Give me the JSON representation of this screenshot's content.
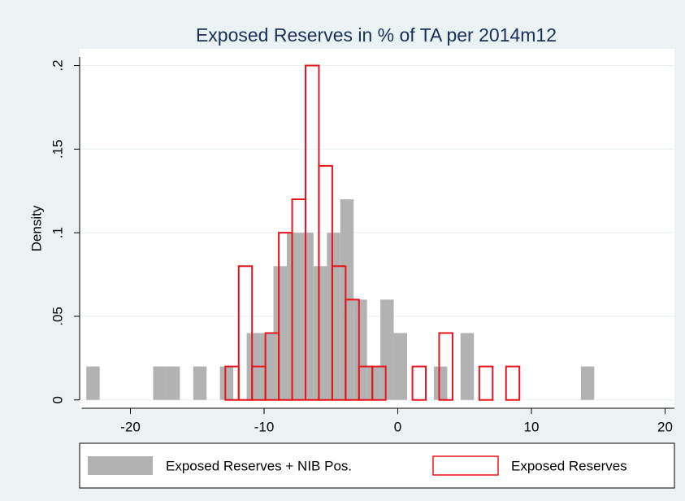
{
  "chart_data": {
    "type": "histogram",
    "title": "Exposed Reserves in % of TA per 2014m12",
    "y_label": "Density",
    "xlim": [
      -23.8,
      20.7
    ],
    "ylim": [
      -0.005,
      0.21
    ],
    "xticks": [
      -20,
      -10,
      0,
      10,
      20
    ],
    "yticks": [
      {
        "value": 0,
        "label": "0"
      },
      {
        "value": 0.05,
        "label": ".05"
      },
      {
        "value": 0.1,
        "label": ".1"
      },
      {
        "value": 0.15,
        "label": ".15"
      },
      {
        "value": 0.2,
        "label": ".2"
      }
    ],
    "grid": true,
    "series": [
      {
        "name": "Exposed Reserves + NIB Pos.",
        "color": "#b2b2b2",
        "fill": true,
        "bins": [
          -23.3,
          -22.3,
          -21.3,
          -20.3,
          -19.3,
          -18.3,
          -17.3,
          -16.3,
          -15.3,
          -14.3,
          -13.3,
          -12.3,
          -11.3,
          -10.3,
          -9.3,
          -8.3,
          -7.3,
          -6.3,
          -5.3,
          -4.3,
          -3.3,
          -2.3,
          -1.3,
          -0.3,
          0.7,
          1.7,
          2.7,
          3.7,
          4.7,
          5.7,
          6.7,
          7.7,
          8.7,
          9.7,
          10.7,
          11.7,
          12.7,
          13.7,
          14.7
        ],
        "values": [
          0.02,
          0,
          0,
          0,
          0,
          0.02,
          0.02,
          0,
          0.02,
          0,
          0.02,
          0,
          0.04,
          0.04,
          0.08,
          0.1,
          0.1,
          0.08,
          0.1,
          0.12,
          0.06,
          0.02,
          0.06,
          0.04,
          0,
          0,
          0.02,
          0,
          0.04,
          0,
          0,
          0,
          0,
          0,
          0,
          0,
          0,
          0.02
        ]
      },
      {
        "name": "Exposed Reserves",
        "color": "#e8141c",
        "fill": false,
        "bins": [
          -12.9,
          -11.9,
          -10.9,
          -9.9,
          -8.9,
          -7.9,
          -6.9,
          -5.9,
          -4.9,
          -3.9,
          -2.9,
          -1.9,
          -0.9,
          0.1,
          1.1,
          2.1,
          3.1,
          4.1,
          5.1,
          6.1,
          7.1,
          8.1,
          9.1
        ],
        "values": [
          0.02,
          0.08,
          0.02,
          0.04,
          0.1,
          0.12,
          0.2,
          0.14,
          0.08,
          0.06,
          0.02,
          0.02,
          0,
          0,
          0.02,
          0,
          0.04,
          0,
          0,
          0.02,
          0,
          0.02
        ]
      }
    ]
  }
}
